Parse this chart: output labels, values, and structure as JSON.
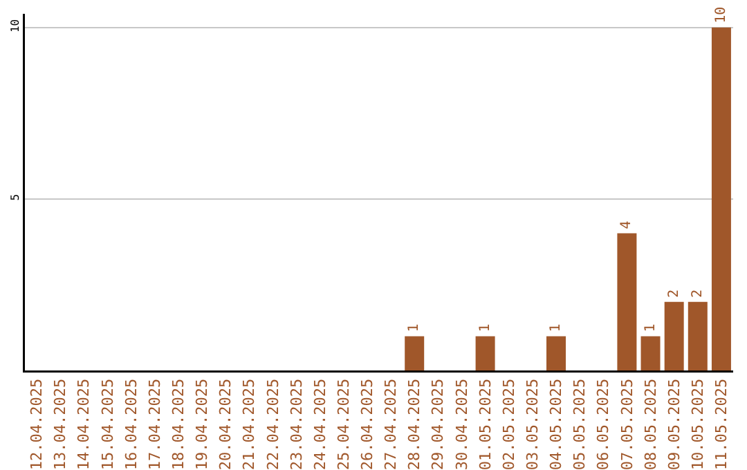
{
  "chart_data": {
    "type": "bar",
    "categories": [
      "12.04.2025",
      "13.04.2025",
      "14.04.2025",
      "15.04.2025",
      "16.04.2025",
      "17.04.2025",
      "18.04.2025",
      "19.04.2025",
      "20.04.2025",
      "21.04.2025",
      "22.04.2025",
      "23.04.2025",
      "24.04.2025",
      "25.04.2025",
      "26.04.2025",
      "27.04.2025",
      "28.04.2025",
      "29.04.2025",
      "30.04.2025",
      "01.05.2025",
      "02.05.2025",
      "03.05.2025",
      "04.05.2025",
      "05.05.2025",
      "06.05.2025",
      "07.05.2025",
      "08.05.2025",
      "09.05.2025",
      "10.05.2025",
      "11.05.2025"
    ],
    "values": [
      0,
      0,
      0,
      0,
      0,
      0,
      0,
      0,
      0,
      0,
      0,
      0,
      0,
      0,
      0,
      0,
      1,
      0,
      0,
      1,
      0,
      0,
      1,
      0,
      0,
      4,
      1,
      2,
      2,
      10
    ],
    "value_labels": [
      null,
      null,
      null,
      null,
      null,
      null,
      null,
      null,
      null,
      null,
      null,
      null,
      null,
      null,
      null,
      null,
      "1",
      null,
      null,
      "1",
      null,
      null,
      "1",
      null,
      null,
      "4",
      "1",
      "2",
      "2",
      "10"
    ],
    "color": "#a0572a",
    "ylim": [
      0,
      10.4
    ],
    "yticks": [
      5,
      10
    ],
    "grid": "y",
    "legend": false
  }
}
